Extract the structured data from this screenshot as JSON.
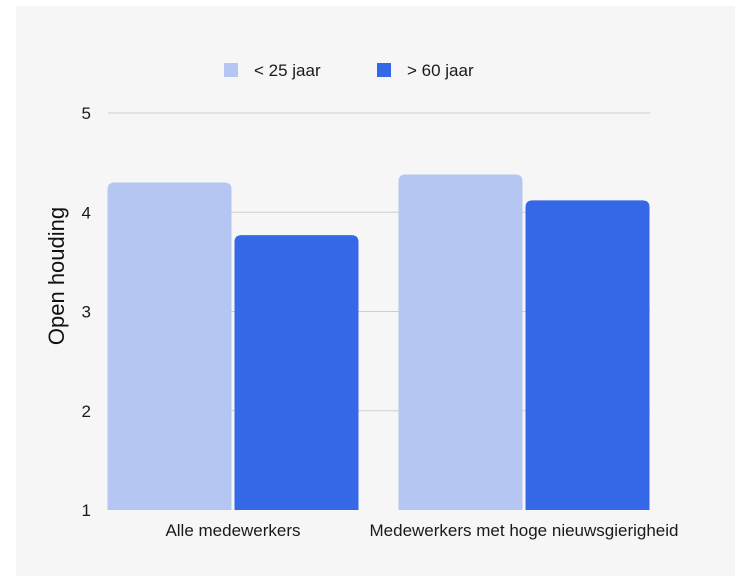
{
  "chart_data": {
    "type": "bar",
    "title": "",
    "xlabel": "",
    "ylabel": "Open houding",
    "categories": [
      "Alle medewerkers",
      "Medewerkers met hoge nieuwsgierigheid"
    ],
    "series": [
      {
        "name": "< 25 jaar",
        "values": [
          4.3,
          4.38
        ],
        "color": "#b5c6f3"
      },
      {
        "name": "> 60 jaar",
        "values": [
          3.77,
          4.12
        ],
        "color": "#3568e6"
      }
    ],
    "ylim": [
      1,
      5
    ],
    "yticks": [
      "1",
      "2",
      "3",
      "4",
      "5"
    ],
    "grid": true,
    "legend_position": "top-center"
  }
}
